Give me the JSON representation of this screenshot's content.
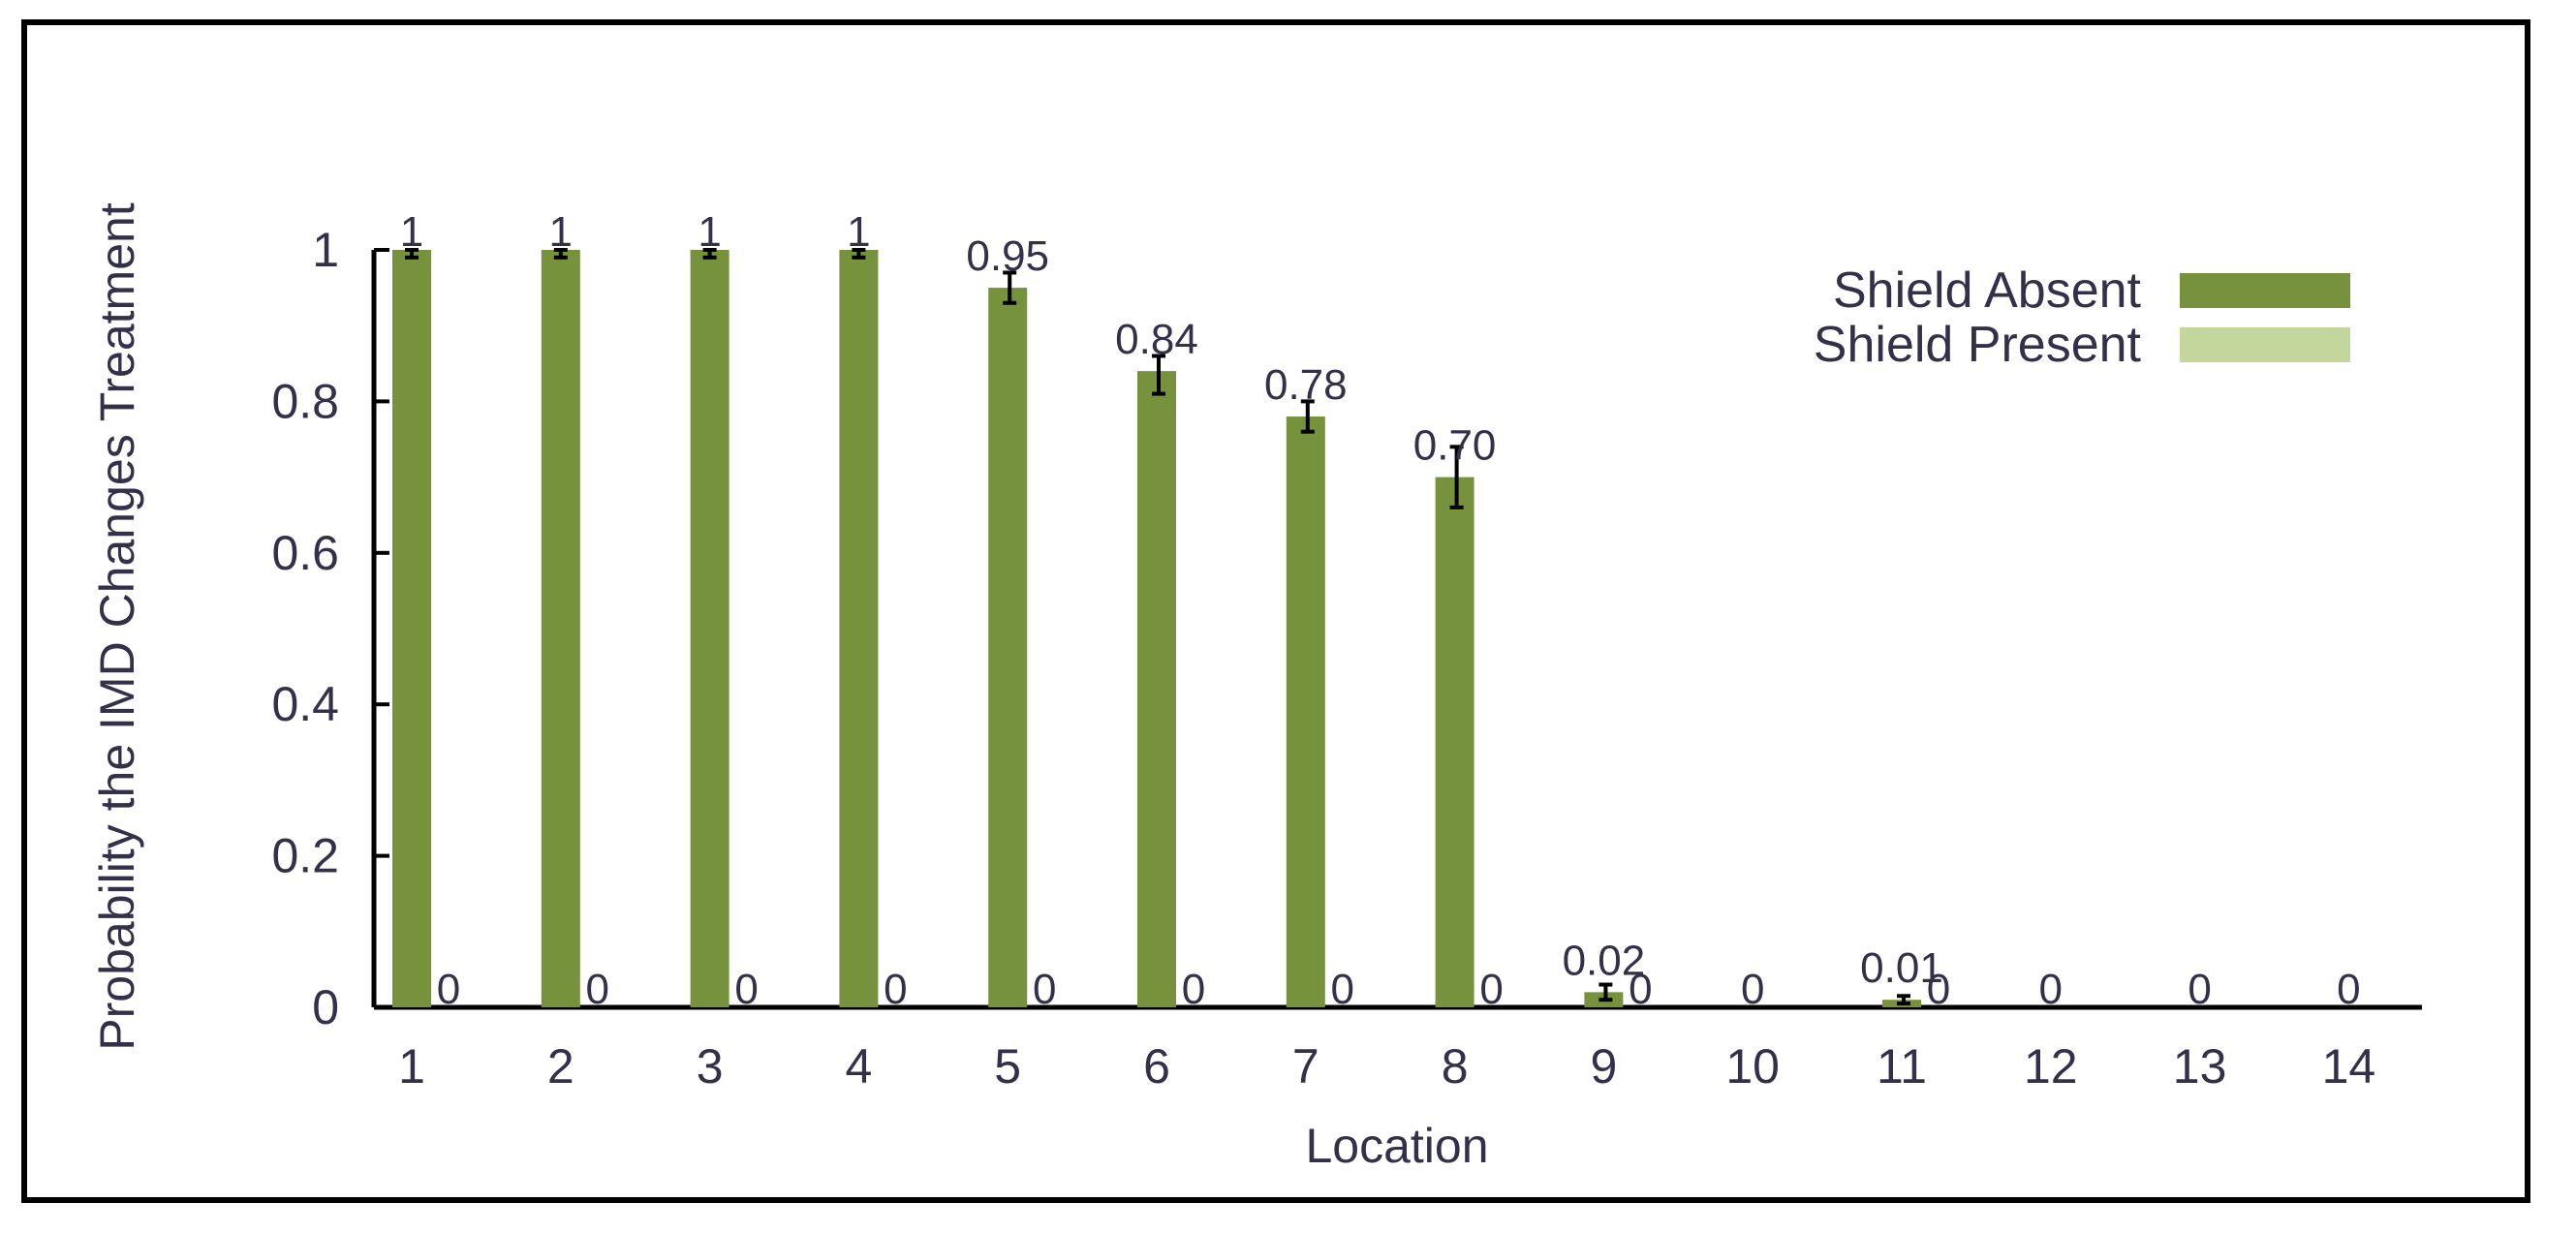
{
  "chart_data": {
    "type": "bar",
    "title": "",
    "xlabel": "Location",
    "ylabel": "Probability the IMD Changes Treatment",
    "categories": [
      "1",
      "2",
      "3",
      "4",
      "5",
      "6",
      "7",
      "8",
      "9",
      "10",
      "11",
      "12",
      "13",
      "14"
    ],
    "ylim": [
      0,
      1
    ],
    "yticks": [
      "0",
      "0.2",
      "0.4",
      "0.6",
      "0.8",
      "1"
    ],
    "grid": false,
    "legend_position": "top-right",
    "series": [
      {
        "name": "Shield Absent",
        "color": "#76923c",
        "values": [
          1,
          1,
          1,
          1,
          0.95,
          0.84,
          0.78,
          0.7,
          0.02,
          0,
          0.01,
          0,
          0,
          0
        ],
        "labels": [
          "1",
          "1",
          "1",
          "1",
          "0.95",
          "0.84",
          "0.78",
          "0.70",
          "0.02",
          "0",
          "0.01",
          "0",
          "0",
          "0"
        ],
        "error": [
          [
            0.99,
            1.0
          ],
          [
            0.99,
            1.0
          ],
          [
            0.99,
            1.0
          ],
          [
            0.99,
            1.0
          ],
          [
            0.93,
            0.97
          ],
          [
            0.81,
            0.86
          ],
          [
            0.76,
            0.8
          ],
          [
            0.66,
            0.74
          ],
          [
            0.01,
            0.03
          ],
          null,
          [
            0.005,
            0.015
          ],
          null,
          null,
          null
        ]
      },
      {
        "name": "Shield Present",
        "color": "#c3d69b",
        "values": [
          0,
          0,
          0,
          0,
          0,
          0,
          0,
          0,
          0,
          0,
          0,
          0,
          0,
          0
        ],
        "labels": [
          "0",
          "0",
          "0",
          "0",
          "0",
          "0",
          "0",
          "0",
          "0",
          "",
          "0",
          "0",
          "0",
          "0"
        ]
      }
    ]
  }
}
